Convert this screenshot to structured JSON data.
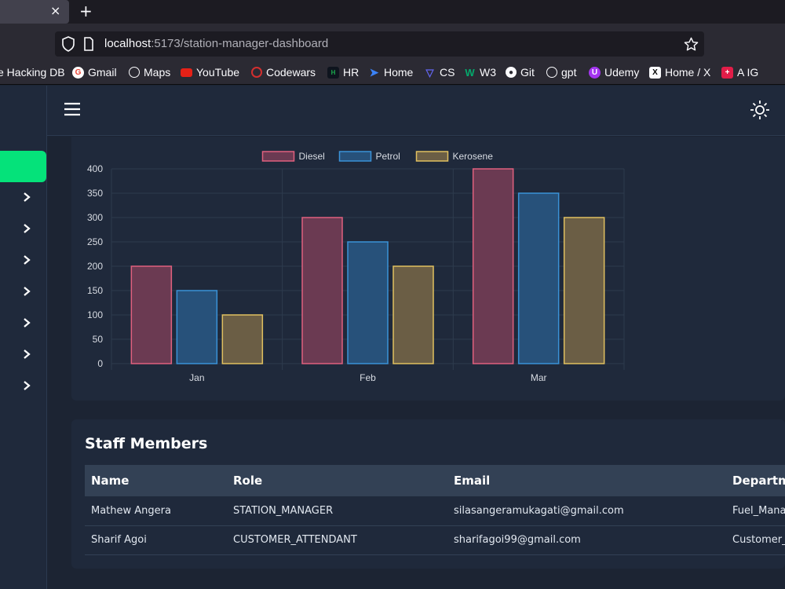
{
  "browser": {
    "tab_close": "×",
    "new_tab": "+",
    "url_host": "localhost",
    "url_path": ":5173/station-manager-dashboard"
  },
  "bookmarks": [
    {
      "label": "e Hacking DB",
      "icon": "none"
    },
    {
      "label": "Gmail",
      "icon": "google-icon",
      "color": "#ea4335"
    },
    {
      "label": "Maps",
      "icon": "globe-icon"
    },
    {
      "label": "YouTube",
      "icon": "youtube-icon",
      "color": "#e62117"
    },
    {
      "label": "Codewars",
      "icon": "codewars-icon",
      "color": "#d32f2f"
    },
    {
      "label": "HR",
      "icon": "hackerrank-icon",
      "color": "#1ba94c"
    },
    {
      "label": "Home",
      "icon": "home-bookmark-icon",
      "color": "#3b82f6"
    },
    {
      "label": "CS",
      "icon": "cs-icon",
      "color": "#6366f1"
    },
    {
      "label": "W3",
      "icon": "w3-icon",
      "color": "#04aa6d"
    },
    {
      "label": "Git",
      "icon": "github-icon"
    },
    {
      "label": "gpt",
      "icon": "openai-icon"
    },
    {
      "label": "Udemy",
      "icon": "udemy-icon",
      "color": "#a435f0"
    },
    {
      "label": "Home / X",
      "icon": "x-icon"
    },
    {
      "label": "A IG",
      "icon": "ig-icon",
      "color": "#e11d48"
    }
  ],
  "chart_data": {
    "type": "bar",
    "categories": [
      "Jan",
      "Feb",
      "Mar"
    ],
    "series": [
      {
        "name": "Diesel",
        "values": [
          200,
          300,
          400
        ],
        "fill": "#6b3a52",
        "stroke": "#e0607e"
      },
      {
        "name": "Petrol",
        "values": [
          150,
          250,
          350
        ],
        "fill": "#27517a",
        "stroke": "#3a92d8"
      },
      {
        "name": "Kerosene",
        "values": [
          100,
          200,
          300
        ],
        "fill": "#6b5e45",
        "stroke": "#e0c060"
      }
    ],
    "ylim": [
      0,
      400
    ],
    "yticks": [
      0,
      50,
      100,
      150,
      200,
      250,
      300,
      350,
      400
    ],
    "legend": "top",
    "grid": true
  },
  "staff": {
    "title": "Staff Members",
    "columns": [
      "Name",
      "Role",
      "Email",
      "Departme"
    ],
    "rows": [
      [
        "Mathew Angera",
        "STATION_MANAGER",
        "silasangeramukagati@gmail.com",
        "Fuel_Mana"
      ],
      [
        "Sharif Agoi",
        "CUSTOMER_ATTENDANT",
        "sharifagoi99@gmail.com",
        "Customer_"
      ]
    ]
  },
  "colors": {
    "accent": "#05e27a",
    "card_bg": "#1f293b",
    "page_bg": "#1c2433",
    "table_header_bg": "#334155"
  }
}
